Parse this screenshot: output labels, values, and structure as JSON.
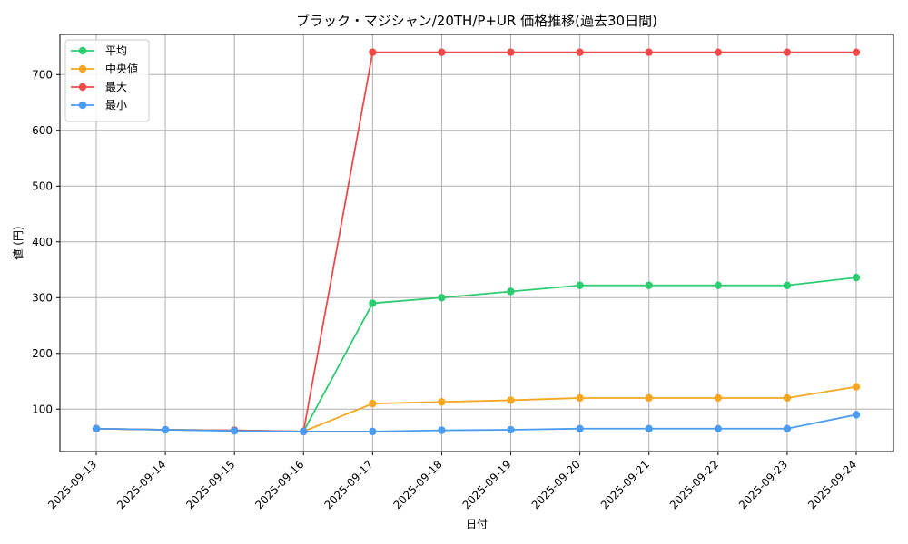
{
  "chart_data": {
    "type": "line",
    "title": "ブラック・マジシャン/20TH/P+UR 価格推移(過去30日間)",
    "xlabel": "日付",
    "ylabel": "値 (円)",
    "categories": [
      "2025-09-13",
      "2025-09-14",
      "2025-09-15",
      "2025-09-16",
      "2025-09-17",
      "2025-09-18",
      "2025-09-19",
      "2025-09-20",
      "2025-09-21",
      "2025-09-22",
      "2025-09-23",
      "2025-09-24"
    ],
    "ylim": [
      24,
      772
    ],
    "yticks": [
      100,
      200,
      300,
      400,
      500,
      600,
      700
    ],
    "grid": true,
    "legend_position": "top-left",
    "series": [
      {
        "name": "平均",
        "color": "#2ecc71",
        "values": [
          65,
          63,
          62,
          60,
          290,
          300,
          311,
          322,
          322,
          322,
          322,
          336
        ]
      },
      {
        "name": "中央値",
        "color": "#f5a623",
        "values": [
          65,
          63,
          62,
          60,
          110,
          113,
          116,
          120,
          120,
          120,
          120,
          140
        ]
      },
      {
        "name": "最大",
        "color": "#ef4b4b",
        "values": [
          65,
          63,
          62,
          60,
          740,
          740,
          740,
          740,
          740,
          740,
          740,
          740
        ]
      },
      {
        "name": "最小",
        "color": "#4a9cf0",
        "values": [
          65,
          63,
          61,
          60,
          60,
          62,
          63,
          65,
          65,
          65,
          65,
          90
        ]
      }
    ]
  }
}
